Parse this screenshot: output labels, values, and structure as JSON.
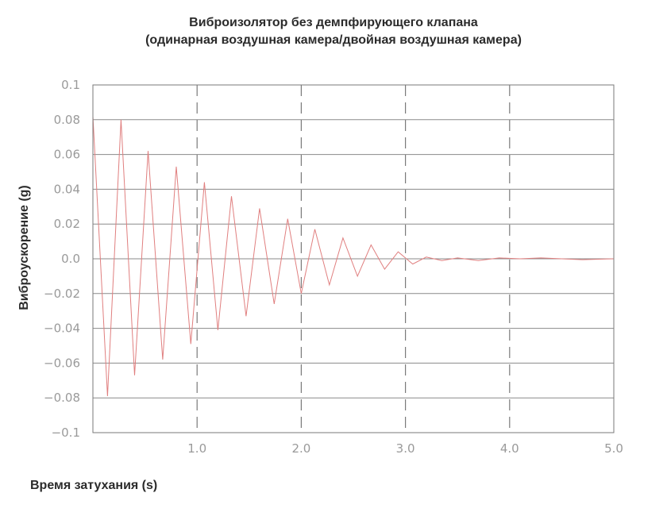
{
  "chart_data": {
    "type": "line",
    "title": "Виброизолятор без демпфирующего клапана",
    "subtitle": "(одинарная воздушная камера/двойная воздушная камера)",
    "xlabel": "Время затухания (s)",
    "ylabel": "Виброускорение (g)",
    "xlim": [
      0,
      5.0
    ],
    "ylim": [
      -0.1,
      0.1
    ],
    "x_ticks": [
      "1.0",
      "2.0",
      "3.0",
      "4.0",
      "5.0"
    ],
    "y_ticks": [
      "0.1",
      "0.08",
      "0.06",
      "0.04",
      "0.02",
      "0.0",
      "−0.02",
      "−0.04",
      "−0.06",
      "−0.08",
      "−0.1"
    ],
    "grid": {
      "horizontal": "solid",
      "vertical": "dashed"
    },
    "line_color": "#e07f7f",
    "series": [
      {
        "name": "Виброускорение",
        "x": [
          0.0,
          0.14,
          0.27,
          0.4,
          0.53,
          0.67,
          0.8,
          0.94,
          1.07,
          1.2,
          1.33,
          1.47,
          1.6,
          1.74,
          1.87,
          2.0,
          2.13,
          2.27,
          2.4,
          2.54,
          2.67,
          2.8,
          2.93,
          3.07,
          3.2,
          3.35,
          3.5,
          3.7,
          3.9,
          4.1,
          4.3,
          4.5,
          4.7,
          5.0
        ],
        "values": [
          0.082,
          -0.079,
          0.08,
          -0.067,
          0.062,
          -0.058,
          0.053,
          -0.049,
          0.044,
          -0.041,
          0.036,
          -0.033,
          0.029,
          -0.026,
          0.023,
          -0.02,
          0.017,
          -0.015,
          0.012,
          -0.01,
          0.008,
          -0.006,
          0.004,
          -0.003,
          0.001,
          -0.001,
          0.0005,
          -0.001,
          0.0005,
          0.0,
          0.0005,
          0.0,
          -0.0005,
          0.0
        ]
      }
    ]
  }
}
